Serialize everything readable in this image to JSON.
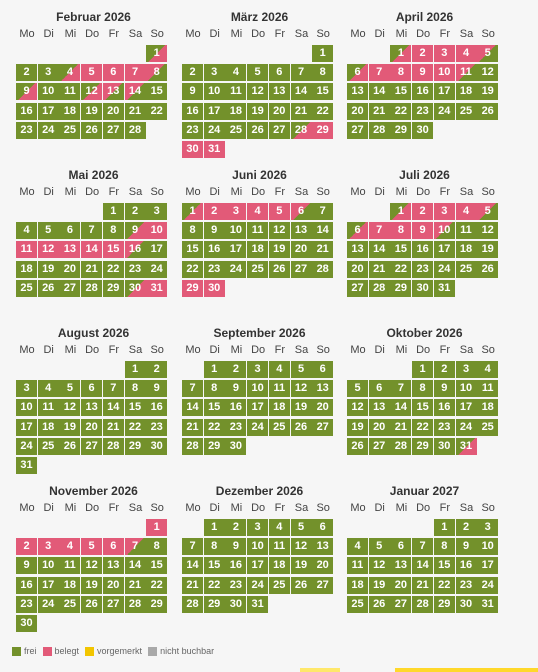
{
  "colors": {
    "free": "#73912b",
    "booked": "#e25a78",
    "reserved": "#f2c500",
    "unavailable": "#a9a9a9"
  },
  "weekdays": [
    "Mo",
    "Di",
    "Mi",
    "Do",
    "Fr",
    "Sa",
    "So"
  ],
  "legend": [
    {
      "key": "free",
      "label": "frei"
    },
    {
      "key": "booked",
      "label": "belegt"
    },
    {
      "key": "reserved",
      "label": "vorgemerkt"
    },
    {
      "key": "unavailable",
      "label": "nicht buchbar"
    }
  ],
  "months": [
    {
      "title": "Februar 2026",
      "start": 6,
      "days": 28,
      "booked": [
        1,
        5,
        6,
        7,
        8,
        9,
        12,
        13
      ],
      "half_in": [
        1,
        4,
        9,
        12
      ],
      "half_out": [
        8,
        13,
        14
      ]
    },
    {
      "title": "März 2026",
      "start": 6,
      "days": 31,
      "booked": [
        29,
        30,
        31
      ],
      "half_in": [
        28
      ],
      "half_out": []
    },
    {
      "title": "April 2026",
      "start": 2,
      "days": 30,
      "booked": [
        1,
        2,
        3,
        4,
        6,
        7,
        8,
        9,
        10
      ],
      "half_in": [
        1,
        6
      ],
      "half_out": [
        5,
        11
      ]
    },
    {
      "title": "Mai 2026",
      "start": 4,
      "days": 31,
      "booked": [
        9,
        10,
        11,
        12,
        13,
        14,
        15,
        31
      ],
      "half_in": [
        9,
        30
      ],
      "half_out": [
        16
      ]
    },
    {
      "title": "Juni 2026",
      "start": 0,
      "days": 30,
      "booked": [
        1,
        2,
        3,
        4,
        5,
        29,
        30
      ],
      "half_in": [
        1
      ],
      "half_out": [
        6
      ]
    },
    {
      "title": "Juli 2026",
      "start": 2,
      "days": 31,
      "booked": [
        1,
        2,
        3,
        4,
        6,
        7,
        8,
        9
      ],
      "half_in": [
        1,
        6
      ],
      "half_out": [
        5,
        10
      ]
    },
    {
      "title": "August 2026",
      "start": 5,
      "days": 31,
      "booked": [],
      "half_in": [],
      "half_out": []
    },
    {
      "title": "September 2026",
      "start": 1,
      "days": 30,
      "booked": [],
      "half_in": [],
      "half_out": []
    },
    {
      "title": "Oktober 2026",
      "start": 3,
      "days": 31,
      "booked": [],
      "half_in": [
        31
      ],
      "half_out": []
    },
    {
      "title": "November 2026",
      "start": 6,
      "days": 30,
      "booked": [
        1,
        2,
        3,
        4,
        5,
        6
      ],
      "half_in": [],
      "half_out": [
        7
      ]
    },
    {
      "title": "Dezember 2026",
      "start": 1,
      "days": 31,
      "booked": [],
      "half_in": [],
      "half_out": []
    },
    {
      "title": "Januar 2027",
      "start": 4,
      "days": 31,
      "booked": [],
      "half_in": [],
      "half_out": []
    }
  ]
}
